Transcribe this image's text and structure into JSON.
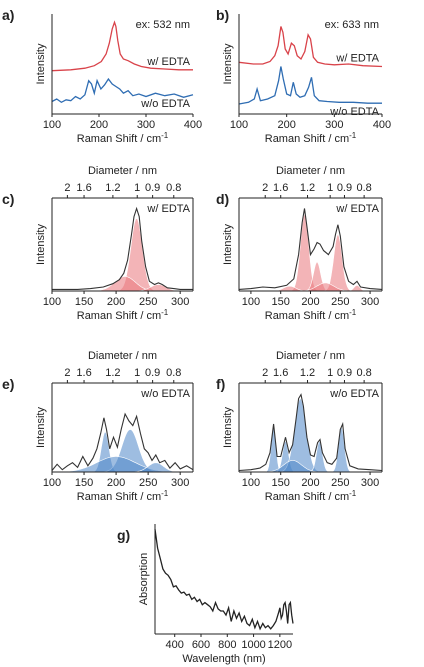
{
  "figure": {
    "colors": {
      "red": "#d9434a",
      "redFill": "#e9777c",
      "blue": "#2f6db3",
      "blueFill": "#4f86c9",
      "black": "#222222"
    }
  },
  "chart_data": [
    {
      "panel": "a)",
      "type": "line",
      "annotation": "ex: 532 nm",
      "xlabel": "Raman Shift / cm",
      "xlabel_sup": "-1",
      "ylabel": "Intensity",
      "xlim": [
        100,
        400
      ],
      "xticks": [
        "100",
        "200",
        "300",
        "400"
      ],
      "series": [
        {
          "name": "w/ EDTA",
          "color": "red",
          "x": [
            100,
            140,
            170,
            190,
            205,
            215,
            222,
            228,
            233,
            236,
            240,
            245,
            252,
            262,
            275,
            290,
            310,
            340,
            370,
            400
          ],
          "y": [
            0.52,
            0.53,
            0.55,
            0.58,
            0.63,
            0.72,
            0.85,
            1.02,
            1.1,
            1.05,
            0.88,
            0.72,
            0.66,
            0.64,
            0.6,
            0.57,
            0.55,
            0.54,
            0.53,
            0.53
          ]
        },
        {
          "name": "w/o EDTA",
          "color": "blue",
          "x": [
            100,
            110,
            120,
            130,
            140,
            150,
            160,
            170,
            178,
            184,
            190,
            196,
            204,
            212,
            220,
            228,
            236,
            244,
            252,
            262,
            272,
            285,
            300,
            320,
            340,
            360,
            380,
            400
          ],
          "y": [
            0.15,
            0.18,
            0.14,
            0.17,
            0.16,
            0.21,
            0.18,
            0.23,
            0.4,
            0.36,
            0.25,
            0.4,
            0.3,
            0.35,
            0.42,
            0.36,
            0.33,
            0.3,
            0.25,
            0.28,
            0.22,
            0.24,
            0.21,
            0.25,
            0.22,
            0.24,
            0.2,
            0.23
          ]
        }
      ]
    },
    {
      "panel": "b)",
      "type": "line",
      "annotation": "ex: 633 nm",
      "xlabel": "Raman Shift / cm",
      "xlabel_sup": "-1",
      "ylabel": "Intensity",
      "xlim": [
        100,
        400
      ],
      "xticks": [
        "100",
        "200",
        "300",
        "400"
      ],
      "series": [
        {
          "name": "w/ EDTA",
          "color": "red",
          "x": [
            100,
            130,
            150,
            165,
            175,
            182,
            188,
            192,
            197,
            203,
            210,
            216,
            222,
            230,
            238,
            245,
            250,
            256,
            265,
            280,
            300,
            330,
            360,
            400
          ],
          "y": [
            0.62,
            0.6,
            0.6,
            0.63,
            0.7,
            0.82,
            1.05,
            0.98,
            0.78,
            0.72,
            0.85,
            0.82,
            0.7,
            0.66,
            0.75,
            0.95,
            0.9,
            0.68,
            0.62,
            0.6,
            0.59,
            0.6,
            0.58,
            0.57
          ]
        },
        {
          "name": "w/o EDTA",
          "color": "blue",
          "x": [
            100,
            120,
            132,
            138,
            145,
            160,
            175,
            183,
            188,
            193,
            200,
            208,
            214,
            220,
            228,
            238,
            246,
            252,
            258,
            268,
            285,
            310,
            340,
            370,
            400
          ],
          "y": [
            0.12,
            0.14,
            0.18,
            0.3,
            0.16,
            0.18,
            0.22,
            0.4,
            0.57,
            0.42,
            0.24,
            0.22,
            0.38,
            0.24,
            0.2,
            0.22,
            0.32,
            0.44,
            0.22,
            0.16,
            0.15,
            0.14,
            0.14,
            0.13,
            0.13
          ]
        }
      ]
    },
    {
      "panel": "c)",
      "type": "area",
      "annotation": "w/ EDTA",
      "toplabel": "Diameter / nm",
      "top_ticks": [
        {
          "label": "2",
          "x": 124
        },
        {
          "label": "1.6",
          "x": 150
        },
        {
          "label": "1.2",
          "x": 195
        },
        {
          "label": "1",
          "x": 233
        },
        {
          "label": "0.9",
          "x": 257
        },
        {
          "label": "0.8",
          "x": 290
        }
      ],
      "xlabel": "Raman Shift / cm",
      "xlabel_sup": "-1",
      "ylabel": "Intensity",
      "xlim": [
        100,
        320
      ],
      "xticks": [
        "100",
        "150",
        "200",
        "250",
        "300"
      ],
      "fill_color": "redFill",
      "components": [
        {
          "center": 232,
          "width": 9,
          "height": 0.9
        },
        {
          "center": 214,
          "width": 16,
          "height": 0.18
        },
        {
          "center": 266,
          "width": 12,
          "height": 0.08
        }
      ],
      "spectrum": {
        "x": [
          100,
          120,
          140,
          160,
          180,
          195,
          205,
          212,
          218,
          224,
          228,
          232,
          236,
          240,
          246,
          252,
          260,
          266,
          272,
          280,
          290,
          300,
          320
        ],
        "y": [
          0.02,
          0.02,
          0.02,
          0.03,
          0.05,
          0.09,
          0.14,
          0.22,
          0.38,
          0.7,
          0.92,
          1.02,
          0.92,
          0.62,
          0.3,
          0.12,
          0.08,
          0.1,
          0.08,
          0.04,
          0.03,
          0.02,
          0.02
        ]
      }
    },
    {
      "panel": "d)",
      "type": "area",
      "annotation": "w/ EDTA",
      "toplabel": "Diameter / nm",
      "top_ticks": [
        {
          "label": "2",
          "x": 124
        },
        {
          "label": "1.6",
          "x": 150
        },
        {
          "label": "1.2",
          "x": 195
        },
        {
          "label": "1",
          "x": 233
        },
        {
          "label": "0.9",
          "x": 257
        },
        {
          "label": "0.8",
          "x": 290
        }
      ],
      "xlabel": "Raman Shift / cm",
      "xlabel_sup": "-1",
      "ylabel": "Intensity",
      "xlim": [
        80,
        320
      ],
      "xticks": [
        "100",
        "150",
        "200",
        "250",
        "300"
      ],
      "fill_color": "redFill",
      "components": [
        {
          "center": 190,
          "width": 7,
          "height": 0.95
        },
        {
          "center": 211,
          "width": 6,
          "height": 0.36
        },
        {
          "center": 246,
          "width": 7,
          "height": 0.7
        },
        {
          "center": 225,
          "width": 14,
          "height": 0.1
        },
        {
          "center": 165,
          "width": 10,
          "height": 0.06
        },
        {
          "center": 278,
          "width": 5,
          "height": 0.07
        }
      ],
      "spectrum": {
        "x": [
          80,
          100,
          120,
          140,
          160,
          172,
          180,
          186,
          190,
          194,
          200,
          206,
          211,
          216,
          222,
          230,
          238,
          242,
          246,
          250,
          256,
          264,
          272,
          278,
          284,
          300,
          320
        ],
        "y": [
          0.02,
          0.03,
          0.05,
          0.04,
          0.07,
          0.15,
          0.45,
          0.85,
          1.02,
          0.8,
          0.45,
          0.52,
          0.6,
          0.58,
          0.5,
          0.45,
          0.55,
          0.7,
          0.82,
          0.68,
          0.3,
          0.12,
          0.08,
          0.12,
          0.05,
          0.03,
          0.02
        ]
      }
    },
    {
      "panel": "e)",
      "type": "area",
      "annotation": "w/o EDTA",
      "toplabel": "Diameter / nm",
      "top_ticks": [
        {
          "label": "2",
          "x": 124
        },
        {
          "label": "1.6",
          "x": 150
        },
        {
          "label": "1.2",
          "x": 195
        },
        {
          "label": "1",
          "x": 233
        },
        {
          "label": "0.9",
          "x": 257
        },
        {
          "label": "0.8",
          "x": 290
        }
      ],
      "xlabel": "Raman Shift / cm",
      "xlabel_sup": "-1",
      "ylabel": "Intensity",
      "xlim": [
        100,
        320
      ],
      "xticks": [
        "100",
        "150",
        "200",
        "250",
        "300"
      ],
      "fill_color": "blueFill",
      "components": [
        {
          "center": 183,
          "width": 6,
          "height": 0.52
        },
        {
          "center": 222,
          "width": 13,
          "height": 0.55
        },
        {
          "center": 200,
          "width": 30,
          "height": 0.2
        },
        {
          "center": 262,
          "width": 12,
          "height": 0.12
        }
      ],
      "spectrum": {
        "x": [
          100,
          108,
          116,
          124,
          132,
          140,
          148,
          156,
          164,
          170,
          176,
          181,
          185,
          190,
          196,
          202,
          208,
          214,
          220,
          226,
          232,
          238,
          244,
          250,
          256,
          262,
          268,
          276,
          284,
          292,
          300,
          310,
          320
        ],
        "y": [
          0.02,
          0.1,
          0.03,
          0.08,
          0.12,
          0.06,
          0.2,
          0.08,
          0.18,
          0.3,
          0.5,
          0.7,
          0.55,
          0.3,
          0.45,
          0.32,
          0.55,
          0.75,
          0.66,
          0.6,
          0.72,
          0.5,
          0.3,
          0.25,
          0.15,
          0.22,
          0.12,
          0.15,
          0.05,
          0.12,
          0.04,
          0.08,
          0.03
        ]
      }
    },
    {
      "panel": "f)",
      "type": "area",
      "annotation": "w/o EDTA",
      "toplabel": "Diameter / nm",
      "top_ticks": [
        {
          "label": "2",
          "x": 124
        },
        {
          "label": "1.6",
          "x": 150
        },
        {
          "label": "1.2",
          "x": 195
        },
        {
          "label": "1",
          "x": 233
        },
        {
          "label": "0.9",
          "x": 257
        },
        {
          "label": "0.8",
          "x": 290
        }
      ],
      "xlabel": "Raman Shift / cm",
      "xlabel_sup": "-1",
      "ylabel": "Intensity",
      "xlim": [
        80,
        320
      ],
      "xticks": [
        "100",
        "150",
        "200",
        "250",
        "300"
      ],
      "fill_color": "blueFill",
      "components": [
        {
          "center": 138,
          "width": 4,
          "height": 0.6
        },
        {
          "center": 158,
          "width": 5,
          "height": 0.4
        },
        {
          "center": 183,
          "width": 10,
          "height": 0.95
        },
        {
          "center": 215,
          "width": 5,
          "height": 0.4
        },
        {
          "center": 252,
          "width": 5,
          "height": 0.58
        },
        {
          "center": 170,
          "width": 15,
          "height": 0.15
        }
      ],
      "spectrum": {
        "x": [
          80,
          100,
          115,
          125,
          132,
          138,
          144,
          150,
          158,
          164,
          170,
          176,
          180,
          184,
          188,
          194,
          200,
          206,
          212,
          216,
          220,
          228,
          236,
          244,
          250,
          254,
          258,
          266,
          280,
          300,
          320
        ],
        "y": [
          0.02,
          0.03,
          0.05,
          0.1,
          0.25,
          0.62,
          0.2,
          0.2,
          0.45,
          0.25,
          0.35,
          0.7,
          0.95,
          1.0,
          0.85,
          0.45,
          0.22,
          0.2,
          0.38,
          0.42,
          0.25,
          0.12,
          0.1,
          0.18,
          0.55,
          0.62,
          0.3,
          0.08,
          0.04,
          0.03,
          0.02
        ]
      }
    },
    {
      "panel": "g)",
      "type": "line",
      "xlabel": "Wavelength (nm)",
      "ylabel": "Absorption",
      "xlim": [
        250,
        1300
      ],
      "xticks": [
        "400",
        "600",
        "800",
        "1000",
        "1200"
      ],
      "series": [
        {
          "name": "",
          "color": "black",
          "x": [
            250,
            270,
            290,
            310,
            330,
            350,
            370,
            390,
            410,
            430,
            450,
            470,
            490,
            510,
            530,
            550,
            570,
            590,
            610,
            630,
            650,
            670,
            690,
            710,
            730,
            750,
            770,
            790,
            810,
            830,
            850,
            870,
            890,
            910,
            930,
            950,
            970,
            990,
            1010,
            1030,
            1050,
            1070,
            1090,
            1110,
            1130,
            1150,
            1170,
            1190,
            1200,
            1210,
            1220,
            1230,
            1240,
            1250,
            1260,
            1270,
            1280,
            1290,
            1300
          ],
          "y": [
            1.0,
            0.82,
            0.72,
            0.62,
            0.58,
            0.56,
            0.52,
            0.45,
            0.46,
            0.42,
            0.39,
            0.4,
            0.37,
            0.38,
            0.33,
            0.35,
            0.31,
            0.33,
            0.28,
            0.3,
            0.28,
            0.26,
            0.22,
            0.3,
            0.24,
            0.22,
            0.22,
            0.18,
            0.25,
            0.12,
            0.22,
            0.15,
            0.2,
            0.12,
            0.17,
            0.1,
            0.08,
            0.14,
            0.06,
            0.12,
            0.05,
            0.1,
            0.06,
            0.08,
            0.05,
            0.08,
            0.12,
            0.2,
            0.25,
            0.15,
            0.18,
            0.28,
            0.3,
            0.22,
            0.1,
            0.28,
            0.3,
            0.18,
            0.1
          ]
        }
      ]
    }
  ]
}
